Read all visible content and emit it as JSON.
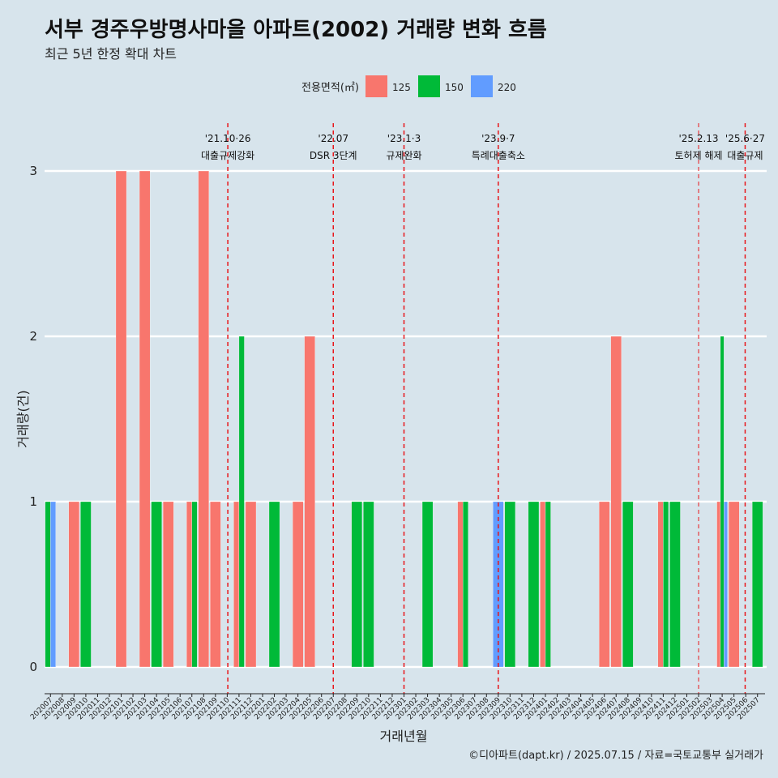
{
  "title": "서부 경주우방명사마을 아파트(2002) 거래량 변화 흐름",
  "subtitle": "최근 5년 한정 확대 차트",
  "caption": "©디아파트(dapt.kr) / 2025.07.15 / 자료=국토교통부 실거래가",
  "colors": {
    "125": "#f8766d",
    "150": "#00ba38",
    "220": "#619cff",
    "background": "#d7e4ec",
    "event_line": "#e8161a"
  },
  "chart_data": {
    "type": "bar",
    "xlabel": "거래년월",
    "ylabel": "거래량(건)",
    "ylim": [
      0,
      3
    ],
    "yticks": [
      0,
      1,
      2,
      3
    ],
    "legend": {
      "title": "전용면적(㎡)",
      "position": "top"
    },
    "categories": [
      "202007",
      "202008",
      "202009",
      "202010",
      "202011",
      "202012",
      "202101",
      "202102",
      "202103",
      "202104",
      "202105",
      "202106",
      "202107",
      "202108",
      "202109",
      "202110",
      "202111",
      "202112",
      "202201",
      "202202",
      "202203",
      "202204",
      "202205",
      "202206",
      "202207",
      "202208",
      "202209",
      "202210",
      "202211",
      "202212",
      "202301",
      "202302",
      "202303",
      "202304",
      "202305",
      "202306",
      "202307",
      "202308",
      "202309",
      "202310",
      "202311",
      "202312",
      "202401",
      "202402",
      "202403",
      "202404",
      "202405",
      "202406",
      "202407",
      "202408",
      "202409",
      "202410",
      "202411",
      "202412",
      "202501",
      "202502",
      "202503",
      "202504",
      "202505",
      "202506",
      "202507"
    ],
    "series": [
      {
        "name": "125",
        "values": [
          0,
          0,
          1,
          0,
          0,
          0,
          3,
          0,
          3,
          0,
          1,
          0,
          1,
          3,
          1,
          0,
          1,
          1,
          0,
          0,
          0,
          1,
          2,
          0,
          0,
          0,
          0,
          0,
          0,
          0,
          0,
          0,
          0,
          0,
          0,
          1,
          0,
          0,
          0,
          0,
          0,
          0,
          1,
          0,
          0,
          0,
          0,
          1,
          2,
          0,
          0,
          0,
          1,
          0,
          0,
          0,
          0,
          1,
          1,
          0,
          0
        ]
      },
      {
        "name": "150",
        "values": [
          1,
          0,
          0,
          1,
          0,
          0,
          0,
          0,
          0,
          1,
          0,
          0,
          1,
          0,
          0,
          0,
          2,
          0,
          0,
          1,
          0,
          0,
          0,
          0,
          0,
          0,
          1,
          1,
          0,
          0,
          0,
          0,
          1,
          0,
          0,
          1,
          0,
          0,
          0,
          1,
          0,
          1,
          1,
          0,
          0,
          0,
          0,
          0,
          0,
          1,
          0,
          0,
          1,
          1,
          0,
          0,
          0,
          2,
          0,
          0,
          1
        ]
      },
      {
        "name": "220",
        "values": [
          1,
          0,
          0,
          0,
          0,
          0,
          0,
          0,
          0,
          0,
          0,
          0,
          0,
          0,
          0,
          0,
          0,
          0,
          0,
          0,
          0,
          0,
          0,
          0,
          0,
          0,
          0,
          0,
          0,
          0,
          0,
          0,
          0,
          0,
          0,
          0,
          0,
          0,
          1,
          0,
          0,
          0,
          0,
          0,
          0,
          0,
          0,
          0,
          0,
          0,
          0,
          0,
          0,
          0,
          0,
          0,
          0,
          1,
          0,
          0,
          0
        ]
      }
    ],
    "events": [
      {
        "date": "'21.10·26",
        "label": "대출규제강화",
        "x": "202110"
      },
      {
        "date": "'22.07",
        "label": "DSR 3단계",
        "x": "202207"
      },
      {
        "date": "'23.1·3",
        "label": "규제완화",
        "x": "202301"
      },
      {
        "date": "'23.9·7",
        "label": "특례대출축소",
        "x": "202309"
      },
      {
        "date": "'25.2.13",
        "label": "토허제 해제",
        "x": "202502"
      },
      {
        "date": "'25.6·27",
        "label": "대출규제",
        "x": "202506"
      }
    ]
  }
}
